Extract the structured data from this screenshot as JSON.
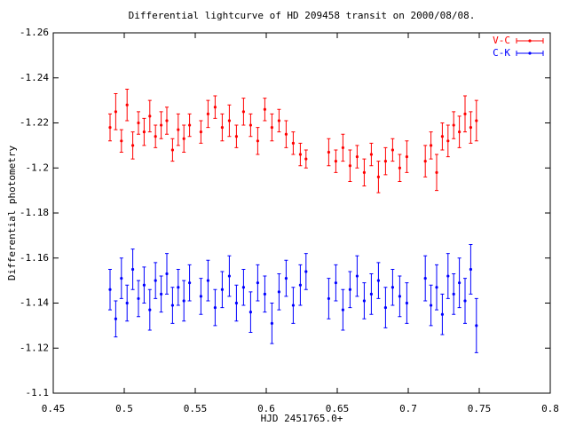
{
  "chart_data": {
    "type": "scatter",
    "title": "Differential lightcurve of HD 209458 transit on 2000/08/08.",
    "x_label": "HJD 2451765.0+",
    "y_label": "Differential photometry",
    "xlim": [
      0.45,
      0.8
    ],
    "xticks": [
      0.45,
      0.5,
      0.55,
      0.6,
      0.65,
      0.7,
      0.75,
      0.8
    ],
    "ylim": [
      -1.1,
      -1.26
    ],
    "yticks": [
      -1.26,
      -1.24,
      -1.22,
      -1.2,
      -1.18,
      -1.16,
      -1.14,
      -1.12,
      -1.1
    ],
    "grid": false,
    "legend": "top-right",
    "x": [
      0.49,
      0.494,
      0.498,
      0.502,
      0.506,
      0.51,
      0.514,
      0.518,
      0.522,
      0.526,
      0.53,
      0.534,
      0.538,
      0.542,
      0.546,
      0.554,
      0.559,
      0.564,
      0.569,
      0.574,
      0.579,
      0.584,
      0.589,
      0.594,
      0.599,
      0.604,
      0.609,
      0.614,
      0.619,
      0.624,
      0.628,
      0.644,
      0.649,
      0.654,
      0.659,
      0.664,
      0.669,
      0.674,
      0.679,
      0.684,
      0.689,
      0.694,
      0.699,
      0.712,
      0.716,
      0.72,
      0.724,
      0.728,
      0.732,
      0.736,
      0.74,
      0.744,
      0.748
    ],
    "series": [
      {
        "name": "V-C",
        "color": "#ff0000",
        "values": [
          -1.218,
          -1.225,
          -1.212,
          -1.228,
          -1.21,
          -1.22,
          -1.216,
          -1.223,
          -1.214,
          -1.219,
          -1.221,
          -1.208,
          -1.217,
          -1.213,
          -1.219,
          -1.216,
          -1.224,
          -1.227,
          -1.218,
          -1.221,
          -1.214,
          -1.225,
          -1.219,
          -1.212,
          -1.226,
          -1.218,
          -1.221,
          -1.215,
          -1.211,
          -1.206,
          -1.204,
          -1.207,
          -1.203,
          -1.209,
          -1.201,
          -1.205,
          -1.198,
          -1.206,
          -1.196,
          -1.203,
          -1.208,
          -1.2,
          -1.205,
          -1.203,
          -1.21,
          -1.198,
          -1.214,
          -1.212,
          -1.219,
          -1.216,
          -1.224,
          -1.218,
          -1.221
        ],
        "errors": [
          0.006,
          0.008,
          0.005,
          0.007,
          0.006,
          0.005,
          0.006,
          0.007,
          0.005,
          0.006,
          0.006,
          0.005,
          0.007,
          0.006,
          0.005,
          0.005,
          0.006,
          0.005,
          0.006,
          0.007,
          0.005,
          0.006,
          0.005,
          0.006,
          0.005,
          0.006,
          0.005,
          0.006,
          0.005,
          0.005,
          0.004,
          0.006,
          0.005,
          0.006,
          0.007,
          0.005,
          0.006,
          0.005,
          0.007,
          0.006,
          0.005,
          0.006,
          0.007,
          0.007,
          0.006,
          0.008,
          0.006,
          0.007,
          0.006,
          0.007,
          0.008,
          0.007,
          0.009
        ]
      },
      {
        "name": "C-K",
        "color": "#0000ff",
        "values": [
          -1.146,
          -1.133,
          -1.151,
          -1.14,
          -1.155,
          -1.142,
          -1.148,
          -1.137,
          -1.15,
          -1.144,
          -1.153,
          -1.139,
          -1.147,
          -1.141,
          -1.149,
          -1.143,
          -1.15,
          -1.138,
          -1.146,
          -1.152,
          -1.14,
          -1.147,
          -1.136,
          -1.149,
          -1.144,
          -1.131,
          -1.145,
          -1.151,
          -1.139,
          -1.148,
          -1.154,
          -1.142,
          -1.149,
          -1.137,
          -1.146,
          -1.152,
          -1.141,
          -1.144,
          -1.15,
          -1.138,
          -1.147,
          -1.143,
          -1.14,
          -1.151,
          -1.139,
          -1.147,
          -1.135,
          -1.152,
          -1.144,
          -1.149,
          -1.141,
          -1.155,
          -1.13
        ],
        "errors": [
          0.009,
          0.008,
          0.009,
          0.008,
          0.009,
          0.008,
          0.008,
          0.009,
          0.008,
          0.008,
          0.009,
          0.008,
          0.008,
          0.009,
          0.008,
          0.008,
          0.009,
          0.008,
          0.008,
          0.009,
          0.008,
          0.008,
          0.009,
          0.008,
          0.008,
          0.009,
          0.008,
          0.008,
          0.008,
          0.009,
          0.008,
          0.009,
          0.008,
          0.009,
          0.008,
          0.009,
          0.008,
          0.009,
          0.008,
          0.009,
          0.008,
          0.009,
          0.009,
          0.01,
          0.009,
          0.01,
          0.009,
          0.01,
          0.009,
          0.011,
          0.01,
          0.011,
          0.012
        ]
      }
    ]
  }
}
